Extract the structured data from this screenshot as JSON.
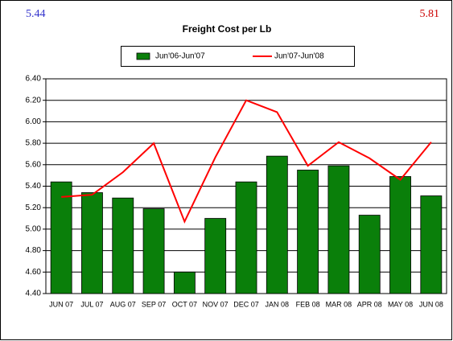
{
  "chart_data": {
    "type": "bar-line",
    "title": "Freight Cost per Lb",
    "annotations": [
      {
        "text": "5.44",
        "color": "#3333cc"
      },
      {
        "text": "5.81",
        "color": "#cc0000"
      }
    ],
    "categories": [
      "JUN 07",
      "JUL 07",
      "AUG 07",
      "SEP 07",
      "OCT 07",
      "NOV 07",
      "DEC 07",
      "JAN 08",
      "FEB 08",
      "MAR 08",
      "APR 08",
      "MAY 08",
      "JUN 08"
    ],
    "series": [
      {
        "name": "Jun'06-Jun'07",
        "kind": "bar",
        "color": "#0a7f0a",
        "values": [
          5.44,
          5.34,
          5.29,
          5.19,
          4.6,
          5.1,
          5.44,
          5.68,
          5.55,
          5.59,
          5.13,
          5.49,
          5.31
        ]
      },
      {
        "name": "Jun'07-Jun'08",
        "kind": "line",
        "color": "#ff0000",
        "values": [
          5.3,
          5.32,
          5.53,
          5.8,
          5.07,
          5.67,
          6.2,
          6.09,
          5.59,
          5.81,
          5.66,
          5.46,
          5.81
        ]
      }
    ],
    "ylim": [
      4.4,
      6.4
    ],
    "yticks": [
      {
        "value": 4.4,
        "label": "4.40"
      },
      {
        "value": 4.6,
        "label": "4.60"
      },
      {
        "value": 4.8,
        "label": "4.80"
      },
      {
        "value": 5.0,
        "label": "5.00"
      },
      {
        "value": 5.2,
        "label": "5.20"
      },
      {
        "value": 5.4,
        "label": "5.40"
      },
      {
        "value": 5.6,
        "label": "5.60"
      },
      {
        "value": 5.8,
        "label": "5.80"
      },
      {
        "value": 6.0,
        "label": "6.00"
      },
      {
        "value": 6.2,
        "label": "6.20"
      },
      {
        "value": 6.4,
        "label": "6.40"
      }
    ],
    "grid": true,
    "legend": "top"
  }
}
